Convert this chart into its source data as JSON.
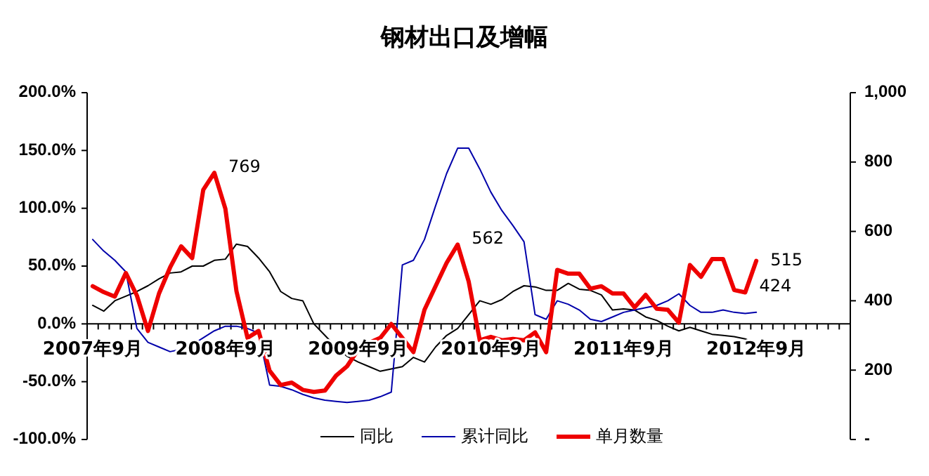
{
  "chart_data": {
    "type": "line",
    "title": "钢材出口及增幅",
    "categories": [
      "2007年9月",
      null,
      null,
      null,
      null,
      null,
      null,
      null,
      null,
      null,
      null,
      null,
      "2008年9月",
      null,
      null,
      null,
      null,
      null,
      null,
      null,
      null,
      null,
      null,
      null,
      "2009年9月",
      null,
      null,
      null,
      null,
      null,
      null,
      null,
      null,
      null,
      null,
      null,
      "2010年9月",
      null,
      null,
      null,
      null,
      null,
      null,
      null,
      null,
      null,
      null,
      null,
      "2011年9月",
      null,
      null,
      null,
      null,
      null,
      null,
      null,
      null,
      null,
      null,
      null,
      "2012年9月",
      null,
      null,
      null,
      null,
      null,
      null,
      null,
      null
    ],
    "series": [
      {
        "name": "同比",
        "color": "#000000",
        "values": [
          16,
          11,
          20,
          24,
          28,
          33,
          39,
          44,
          45,
          50,
          50,
          55,
          56,
          69,
          67,
          57,
          45,
          28,
          22,
          20,
          0,
          -10,
          -20,
          -28,
          -33,
          -37,
          -41,
          -39,
          -37,
          -29,
          -33,
          -20,
          -10,
          -4,
          8,
          20,
          17,
          21,
          28,
          33,
          32,
          29,
          29,
          35,
          30,
          29,
          25,
          12,
          13,
          12,
          6,
          3,
          -2,
          -6,
          -3,
          -6,
          -9,
          -10,
          -11,
          -13,
          -17,
          null,
          null,
          null,
          null,
          null,
          null,
          null,
          null
        ]
      },
      {
        "name": "累计同比",
        "color": "#0000aa",
        "values": [
          73,
          63,
          55,
          45,
          -4,
          -16,
          -20,
          -24,
          -22,
          -18,
          -12,
          -6,
          -2,
          -2,
          -4,
          -8,
          -53,
          -54,
          -57,
          -61,
          -64,
          -66,
          -67,
          -68,
          -67,
          -66,
          -63,
          -59,
          51,
          55,
          73,
          102,
          130,
          152,
          152,
          134,
          114,
          98,
          85,
          71,
          8,
          4,
          20,
          17,
          12,
          4,
          2,
          6,
          10,
          12,
          14,
          16,
          20,
          26,
          16,
          10,
          10,
          12,
          10,
          9,
          10,
          null,
          null,
          null,
          null,
          null,
          null,
          null,
          null
        ]
      },
      {
        "name": "单月数量",
        "color": "#ee0000",
        "axis": "y2",
        "values": [
          442,
          425,
          412,
          480,
          415,
          313,
          421,
          496,
          557,
          523,
          720,
          769,
          665,
          428,
          293,
          313,
          198,
          157,
          164,
          143,
          137,
          141,
          184,
          211,
          259,
          279,
          293,
          333,
          293,
          252,
          374,
          442,
          509,
          562,
          455,
          286,
          296,
          286,
          290,
          286,
          309,
          252,
          489,
          478,
          478,
          435,
          442,
          421,
          421,
          381,
          417,
          377,
          374,
          337,
          503,
          469,
          520,
          520,
          431,
          424,
          515,
          null,
          null,
          null,
          null,
          null,
          null,
          null,
          null
        ],
        "value_labels": [
          null,
          null,
          null,
          null,
          null,
          null,
          null,
          null,
          null,
          null,
          null,
          "769",
          null,
          null,
          null,
          null,
          null,
          null,
          null,
          null,
          null,
          null,
          null,
          null,
          null,
          null,
          null,
          null,
          null,
          null,
          null,
          null,
          null,
          "562",
          null,
          null,
          null,
          null,
          null,
          null,
          null,
          null,
          null,
          null,
          null,
          null,
          null,
          null,
          null,
          null,
          null,
          null,
          null,
          null,
          null,
          null,
          null,
          null,
          null,
          "424",
          "515",
          null,
          null,
          null,
          null,
          null,
          null,
          null,
          null
        ]
      }
    ],
    "ylim": [
      -100,
      200
    ],
    "yticks": [
      {
        "value": 200,
        "label": "200.0%"
      },
      {
        "value": 150,
        "label": "150.0%"
      },
      {
        "value": 100,
        "label": "100.0%"
      },
      {
        "value": 50,
        "label": "50.0%"
      },
      {
        "value": 0,
        "label": "0.0%"
      },
      {
        "value": -50,
        "label": "-50.0%"
      },
      {
        "value": -100,
        "label": "-100.0%"
      }
    ],
    "y2lim": [
      0,
      1000
    ],
    "y2ticks": [
      {
        "value": 1000,
        "label": "1,000"
      },
      800,
      600,
      400,
      200,
      {
        "value": 0,
        "label": "-"
      }
    ],
    "legend": "bottom"
  }
}
